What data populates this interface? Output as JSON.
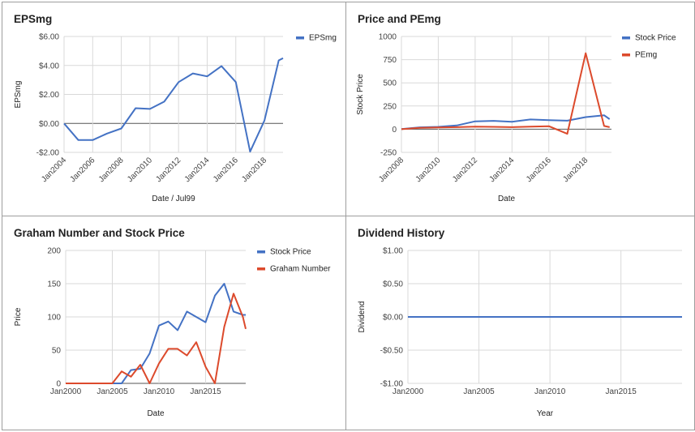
{
  "colors": {
    "blue": "#4472c4",
    "red": "#dc4a2c",
    "grid": "#d9d9d9",
    "zero": "#555555"
  },
  "chart_data": [
    {
      "type": "line",
      "title": "EPSmg",
      "xlabel": "Date / Jul99",
      "ylabel": "EPSmg",
      "xlim": [
        2004,
        2019.3
      ],
      "ylim": [
        -2,
        6
      ],
      "x_ticks": [
        2004,
        2006,
        2008,
        2010,
        2012,
        2014,
        2016,
        2018
      ],
      "x_tick_labels": [
        "Jan2004",
        "Jan2006",
        "Jan2008",
        "Jan2010",
        "Jan2012",
        "Jan2014",
        "Jan2016",
        "Jan2018"
      ],
      "y_ticks": [
        -2,
        0,
        2,
        4,
        6
      ],
      "y_tick_labels": [
        "-$2.00",
        "$0.00",
        "$2.00",
        "$4.00",
        "$6.00"
      ],
      "legend_position": "top-right",
      "series": [
        {
          "name": "EPSmg",
          "color": "#4472c4",
          "x": [
            2004,
            2005,
            2006,
            2007,
            2008,
            2009,
            2010,
            2011,
            2012,
            2013,
            2014,
            2015,
            2016,
            2017,
            2018,
            2019,
            2019.3
          ],
          "y": [
            0,
            -1.15,
            -1.15,
            -0.7,
            -0.35,
            1.05,
            1.0,
            1.5,
            2.85,
            3.45,
            3.25,
            3.95,
            2.85,
            -1.95,
            0.2,
            4.35,
            4.5
          ]
        }
      ]
    },
    {
      "type": "line",
      "title": "Price and PEmg",
      "xlabel": "Date",
      "ylabel": "Stock Price",
      "xlim": [
        2008,
        2019.4
      ],
      "ylim": [
        -250,
        1000
      ],
      "x_ticks": [
        2008,
        2010,
        2012,
        2014,
        2016,
        2018
      ],
      "x_tick_labels": [
        "Jan2008",
        "Jan2010",
        "Jan2012",
        "Jan2014",
        "Jan2016",
        "Jan2018"
      ],
      "y_ticks": [
        -250,
        0,
        250,
        500,
        750,
        1000
      ],
      "y_tick_labels": [
        "-250",
        "0",
        "250",
        "500",
        "750",
        "1000"
      ],
      "legend_position": "top-right",
      "series": [
        {
          "name": "Stock Price",
          "color": "#4472c4",
          "x": [
            2008,
            2009,
            2010,
            2011,
            2012,
            2013,
            2014,
            2015,
            2016,
            2017,
            2018,
            2019,
            2019.3
          ],
          "y": [
            2,
            20,
            25,
            40,
            85,
            90,
            80,
            105,
            98,
            92,
            130,
            150,
            108
          ]
        },
        {
          "name": "PEmg",
          "color": "#dc4a2c",
          "x": [
            2008,
            2009,
            2010,
            2011,
            2012,
            2013,
            2014,
            2015,
            2016,
            2017,
            2018,
            2019,
            2019.3
          ],
          "y": [
            0,
            15,
            18,
            22,
            28,
            25,
            22,
            27,
            32,
            -50,
            820,
            35,
            22
          ]
        }
      ]
    },
    {
      "type": "line",
      "title": "Graham Number and Stock Price",
      "xlabel": "Date",
      "ylabel": "Price",
      "xlim": [
        2000,
        2019.3
      ],
      "ylim": [
        0,
        200
      ],
      "x_ticks": [
        2000,
        2005,
        2010,
        2015
      ],
      "x_tick_labels": [
        "Jan2000",
        "Jan2005",
        "Jan2010",
        "Jan2015"
      ],
      "y_ticks": [
        0,
        50,
        100,
        150,
        200
      ],
      "y_tick_labels": [
        "0",
        "50",
        "100",
        "150",
        "200"
      ],
      "legend_position": "top-right",
      "series": [
        {
          "name": "Stock Price",
          "color": "#4472c4",
          "x": [
            2000,
            2001,
            2002,
            2003,
            2004,
            2005,
            2006,
            2007,
            2008,
            2009,
            2010,
            2011,
            2012,
            2013,
            2014,
            2015,
            2016,
            2017,
            2018,
            2019,
            2019.3
          ],
          "y": [
            0,
            0,
            0,
            0,
            0,
            0,
            0,
            20,
            22,
            45,
            87,
            93,
            80,
            108,
            100,
            92,
            132,
            150,
            108,
            103,
            103
          ]
        },
        {
          "name": "Graham Number",
          "color": "#dc4a2c",
          "x": [
            2000,
            2001,
            2002,
            2003,
            2004,
            2005,
            2006,
            2007,
            2008,
            2009,
            2010,
            2011,
            2012,
            2013,
            2014,
            2015,
            2016,
            2017,
            2018,
            2019,
            2019.3
          ],
          "y": [
            0,
            0,
            0,
            0,
            0,
            0,
            18,
            10,
            28,
            0,
            30,
            52,
            52,
            42,
            62,
            25,
            0,
            85,
            135,
            100,
            82
          ]
        }
      ]
    },
    {
      "type": "line",
      "title": "Dividend History",
      "xlabel": "Year",
      "ylabel": "Dividend",
      "xlim": [
        2000,
        2019.3
      ],
      "ylim": [
        -1,
        1
      ],
      "x_ticks": [
        2000,
        2005,
        2010,
        2015
      ],
      "x_tick_labels": [
        "Jan2000",
        "Jan2005",
        "Jan2010",
        "Jan2015"
      ],
      "y_ticks": [
        -1,
        -0.5,
        0,
        0.5,
        1
      ],
      "y_tick_labels": [
        "-$1.00",
        "-$0.50",
        "$0.00",
        "$0.50",
        "$1.00"
      ],
      "legend_position": "none",
      "series": [
        {
          "name": "",
          "color": "#4472c4",
          "x": [
            2000,
            2019.3
          ],
          "y": [
            0,
            0
          ]
        }
      ]
    }
  ]
}
